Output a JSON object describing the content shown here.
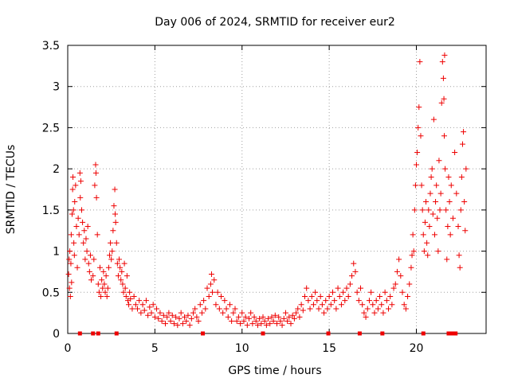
{
  "colors": {
    "marker": "#ee0000",
    "grid": "#a0a0a0",
    "axis": "#000000",
    "background": "#ffffff"
  },
  "chart_data": {
    "type": "scatter",
    "title": "Day 006 of 2024, SRMTID for receiver eur2",
    "xlabel": "GPS time / hours",
    "ylabel": "SRMTID / TECUs",
    "xlim": [
      0,
      24
    ],
    "ylim": [
      0,
      3.5
    ],
    "xticks": [
      0,
      5,
      10,
      15,
      20
    ],
    "xtick_labels": [
      "0",
      "5",
      "10",
      "15",
      "20"
    ],
    "yticks": [
      0,
      0.5,
      1,
      1.5,
      2,
      2.5,
      3,
      3.5
    ],
    "ytick_labels": [
      "0",
      "0.5",
      "1",
      "1.5",
      "2",
      "2.5",
      "3",
      "3.5"
    ],
    "grid": true,
    "marker": "plus",
    "series": [
      {
        "name": "SRMTID",
        "points": [
          [
            0.05,
            0.72
          ],
          [
            0.08,
            0.9
          ],
          [
            0.1,
            0.55
          ],
          [
            0.12,
            1.0
          ],
          [
            0.15,
            0.45
          ],
          [
            0.18,
            0.85
          ],
          [
            0.2,
            1.2
          ],
          [
            0.22,
            0.62
          ],
          [
            0.25,
            1.45
          ],
          [
            0.28,
            1.75
          ],
          [
            0.3,
            1.9
          ],
          [
            0.33,
            1.5
          ],
          [
            0.35,
            1.1
          ],
          [
            0.38,
            0.95
          ],
          [
            0.4,
            1.6
          ],
          [
            0.45,
            1.8
          ],
          [
            0.5,
            1.3
          ],
          [
            0.55,
            0.8
          ],
          [
            0.6,
            1.4
          ],
          [
            0.65,
            1.2
          ],
          [
            0.7,
            1.95
          ],
          [
            0.72,
            1.65
          ],
          [
            0.75,
            1.85
          ],
          [
            0.8,
            1.5
          ],
          [
            0.85,
            1.35
          ],
          [
            0.9,
            1.1
          ],
          [
            0.95,
            1.25
          ],
          [
            1.0,
            0.9
          ],
          [
            1.05,
            1.15
          ],
          [
            1.1,
            1.0
          ],
          [
            1.15,
            1.3
          ],
          [
            1.2,
            0.85
          ],
          [
            1.25,
            0.75
          ],
          [
            1.3,
            0.95
          ],
          [
            1.35,
            0.65
          ],
          [
            1.45,
            0.7
          ],
          [
            1.5,
            0.9
          ],
          [
            1.55,
            1.8
          ],
          [
            1.6,
            2.05
          ],
          [
            1.62,
            1.95
          ],
          [
            1.65,
            1.65
          ],
          [
            1.7,
            1.2
          ],
          [
            1.75,
            0.6
          ],
          [
            1.8,
            0.5
          ],
          [
            1.85,
            0.8
          ],
          [
            1.9,
            0.45
          ],
          [
            1.95,
            0.65
          ],
          [
            2.0,
            0.55
          ],
          [
            2.05,
            0.75
          ],
          [
            2.1,
            0.6
          ],
          [
            2.15,
            0.5
          ],
          [
            2.2,
            0.7
          ],
          [
            2.25,
            0.45
          ],
          [
            2.3,
            0.55
          ],
          [
            2.35,
            0.8
          ],
          [
            2.4,
            0.95
          ],
          [
            2.45,
            1.1
          ],
          [
            2.5,
            0.9
          ],
          [
            2.55,
            1.0
          ],
          [
            2.6,
            1.25
          ],
          [
            2.65,
            1.55
          ],
          [
            2.7,
            1.75
          ],
          [
            2.72,
            1.45
          ],
          [
            2.75,
            1.35
          ],
          [
            2.8,
            1.1
          ],
          [
            2.85,
            0.85
          ],
          [
            2.9,
            0.7
          ],
          [
            2.95,
            0.9
          ],
          [
            3.0,
            0.8
          ],
          [
            3.05,
            0.65
          ],
          [
            3.1,
            0.75
          ],
          [
            3.15,
            0.6
          ],
          [
            3.2,
            0.5
          ],
          [
            3.25,
            0.85
          ],
          [
            3.3,
            0.55
          ],
          [
            3.35,
            0.45
          ],
          [
            3.4,
            0.7
          ],
          [
            3.45,
            0.4
          ],
          [
            3.5,
            0.35
          ],
          [
            3.55,
            0.5
          ],
          [
            3.6,
            0.42
          ],
          [
            3.7,
            0.3
          ],
          [
            3.8,
            0.45
          ],
          [
            3.9,
            0.35
          ],
          [
            4.0,
            0.3
          ],
          [
            4.1,
            0.4
          ],
          [
            4.2,
            0.25
          ],
          [
            4.3,
            0.35
          ],
          [
            4.4,
            0.28
          ],
          [
            4.5,
            0.4
          ],
          [
            4.6,
            0.22
          ],
          [
            4.7,
            0.32
          ],
          [
            4.8,
            0.25
          ],
          [
            4.9,
            0.35
          ],
          [
            5.0,
            0.2
          ],
          [
            5.1,
            0.3
          ],
          [
            5.2,
            0.18
          ],
          [
            5.3,
            0.25
          ],
          [
            5.4,
            0.15
          ],
          [
            5.5,
            0.22
          ],
          [
            5.6,
            0.12
          ],
          [
            5.7,
            0.2
          ],
          [
            5.8,
            0.25
          ],
          [
            5.9,
            0.15
          ],
          [
            6.0,
            0.22
          ],
          [
            6.1,
            0.12
          ],
          [
            6.2,
            0.2
          ],
          [
            6.3,
            0.1
          ],
          [
            6.4,
            0.18
          ],
          [
            6.5,
            0.25
          ],
          [
            6.6,
            0.12
          ],
          [
            6.7,
            0.2
          ],
          [
            6.8,
            0.15
          ],
          [
            6.9,
            0.22
          ],
          [
            7.0,
            0.1
          ],
          [
            7.1,
            0.18
          ],
          [
            7.2,
            0.25
          ],
          [
            7.3,
            0.3
          ],
          [
            7.4,
            0.2
          ],
          [
            7.5,
            0.15
          ],
          [
            7.6,
            0.35
          ],
          [
            7.7,
            0.25
          ],
          [
            7.8,
            0.4
          ],
          [
            7.9,
            0.3
          ],
          [
            8.0,
            0.55
          ],
          [
            8.1,
            0.45
          ],
          [
            8.2,
            0.6
          ],
          [
            8.25,
            0.72
          ],
          [
            8.3,
            0.5
          ],
          [
            8.4,
            0.65
          ],
          [
            8.5,
            0.35
          ],
          [
            8.6,
            0.5
          ],
          [
            8.7,
            0.3
          ],
          [
            8.8,
            0.45
          ],
          [
            8.9,
            0.25
          ],
          [
            9.0,
            0.4
          ],
          [
            9.1,
            0.3
          ],
          [
            9.2,
            0.2
          ],
          [
            9.3,
            0.35
          ],
          [
            9.4,
            0.15
          ],
          [
            9.5,
            0.25
          ],
          [
            9.6,
            0.3
          ],
          [
            9.7,
            0.15
          ],
          [
            9.8,
            0.2
          ],
          [
            9.9,
            0.12
          ],
          [
            10.0,
            0.25
          ],
          [
            10.1,
            0.15
          ],
          [
            10.2,
            0.2
          ],
          [
            10.3,
            0.1
          ],
          [
            10.4,
            0.18
          ],
          [
            10.5,
            0.25
          ],
          [
            10.6,
            0.12
          ],
          [
            10.7,
            0.2
          ],
          [
            10.8,
            0.15
          ],
          [
            10.9,
            0.1
          ],
          [
            11.0,
            0.18
          ],
          [
            11.1,
            0.12
          ],
          [
            11.2,
            0.2
          ],
          [
            11.3,
            0.15
          ],
          [
            11.4,
            0.1
          ],
          [
            11.5,
            0.18
          ],
          [
            11.6,
            0.12
          ],
          [
            11.7,
            0.2
          ],
          [
            11.8,
            0.15
          ],
          [
            11.9,
            0.22
          ],
          [
            12.0,
            0.12
          ],
          [
            12.1,
            0.2
          ],
          [
            12.2,
            0.15
          ],
          [
            12.3,
            0.1
          ],
          [
            12.4,
            0.18
          ],
          [
            12.5,
            0.25
          ],
          [
            12.6,
            0.15
          ],
          [
            12.7,
            0.2
          ],
          [
            12.8,
            0.12
          ],
          [
            12.9,
            0.22
          ],
          [
            13.0,
            0.18
          ],
          [
            13.1,
            0.25
          ],
          [
            13.2,
            0.3
          ],
          [
            13.3,
            0.2
          ],
          [
            13.4,
            0.35
          ],
          [
            13.5,
            0.28
          ],
          [
            13.6,
            0.45
          ],
          [
            13.7,
            0.55
          ],
          [
            13.8,
            0.4
          ],
          [
            13.9,
            0.3
          ],
          [
            14.0,
            0.45
          ],
          [
            14.1,
            0.35
          ],
          [
            14.2,
            0.5
          ],
          [
            14.3,
            0.4
          ],
          [
            14.4,
            0.3
          ],
          [
            14.5,
            0.45
          ],
          [
            14.6,
            0.35
          ],
          [
            14.7,
            0.25
          ],
          [
            14.8,
            0.4
          ],
          [
            14.9,
            0.3
          ],
          [
            15.0,
            0.45
          ],
          [
            15.1,
            0.35
          ],
          [
            15.2,
            0.5
          ],
          [
            15.3,
            0.4
          ],
          [
            15.4,
            0.3
          ],
          [
            15.5,
            0.55
          ],
          [
            15.6,
            0.45
          ],
          [
            15.7,
            0.35
          ],
          [
            15.8,
            0.5
          ],
          [
            15.9,
            0.4
          ],
          [
            16.0,
            0.55
          ],
          [
            16.1,
            0.45
          ],
          [
            16.2,
            0.6
          ],
          [
            16.3,
            0.7
          ],
          [
            16.4,
            0.85
          ],
          [
            16.5,
            0.75
          ],
          [
            16.6,
            0.5
          ],
          [
            16.7,
            0.4
          ],
          [
            16.8,
            0.55
          ],
          [
            16.9,
            0.35
          ],
          [
            17.0,
            0.25
          ],
          [
            17.1,
            0.2
          ],
          [
            17.2,
            0.3
          ],
          [
            17.3,
            0.4
          ],
          [
            17.4,
            0.5
          ],
          [
            17.5,
            0.35
          ],
          [
            17.6,
            0.25
          ],
          [
            17.7,
            0.4
          ],
          [
            17.8,
            0.3
          ],
          [
            17.9,
            0.45
          ],
          [
            18.0,
            0.35
          ],
          [
            18.1,
            0.25
          ],
          [
            18.2,
            0.5
          ],
          [
            18.3,
            0.4
          ],
          [
            18.4,
            0.3
          ],
          [
            18.5,
            0.45
          ],
          [
            18.6,
            0.35
          ],
          [
            18.7,
            0.55
          ],
          [
            18.8,
            0.6
          ],
          [
            18.9,
            0.75
          ],
          [
            19.0,
            0.9
          ],
          [
            19.1,
            0.7
          ],
          [
            19.2,
            0.5
          ],
          [
            19.3,
            0.35
          ],
          [
            19.4,
            0.3
          ],
          [
            19.5,
            0.45
          ],
          [
            19.6,
            0.6
          ],
          [
            19.7,
            0.8
          ],
          [
            19.75,
            0.95
          ],
          [
            19.8,
            1.2
          ],
          [
            19.85,
            1.0
          ],
          [
            19.9,
            1.5
          ],
          [
            19.95,
            1.8
          ],
          [
            20.0,
            2.05
          ],
          [
            20.05,
            2.2
          ],
          [
            20.1,
            2.5
          ],
          [
            20.15,
            2.75
          ],
          [
            20.2,
            3.3
          ],
          [
            20.25,
            2.4
          ],
          [
            20.3,
            1.8
          ],
          [
            20.35,
            1.5
          ],
          [
            20.4,
            1.2
          ],
          [
            20.45,
            1.0
          ],
          [
            20.5,
            1.35
          ],
          [
            20.55,
            1.6
          ],
          [
            20.6,
            1.1
          ],
          [
            20.65,
            0.95
          ],
          [
            20.7,
            1.5
          ],
          [
            20.75,
            1.3
          ],
          [
            20.8,
            1.7
          ],
          [
            20.85,
            1.9
          ],
          [
            20.9,
            2.0
          ],
          [
            20.95,
            1.45
          ],
          [
            21.0,
            2.6
          ],
          [
            21.05,
            1.2
          ],
          [
            21.1,
            1.6
          ],
          [
            21.15,
            1.8
          ],
          [
            21.2,
            1.4
          ],
          [
            21.25,
            1.0
          ],
          [
            21.3,
            2.1
          ],
          [
            21.35,
            1.5
          ],
          [
            21.4,
            1.7
          ],
          [
            21.45,
            2.8
          ],
          [
            21.5,
            3.3
          ],
          [
            21.55,
            3.1
          ],
          [
            21.6,
            2.4
          ],
          [
            21.65,
            2.0
          ],
          [
            21.7,
            1.5
          ],
          [
            21.75,
            0.9
          ],
          [
            21.8,
            1.3
          ],
          [
            21.85,
            1.9
          ],
          [
            21.9,
            1.6
          ],
          [
            21.95,
            1.2
          ],
          [
            22.0,
            1.8
          ],
          [
            22.1,
            1.4
          ],
          [
            22.2,
            2.2
          ],
          [
            22.3,
            1.7
          ],
          [
            22.4,
            1.3
          ],
          [
            22.45,
            0.95
          ],
          [
            22.5,
            0.8
          ],
          [
            22.55,
            1.5
          ],
          [
            22.6,
            1.9
          ],
          [
            22.65,
            2.3
          ],
          [
            22.7,
            2.45
          ],
          [
            22.75,
            1.6
          ],
          [
            22.8,
            1.25
          ],
          [
            22.85,
            2.0
          ],
          [
            21.62,
            3.38
          ],
          [
            21.58,
            2.85
          ]
        ],
        "baseline_points_x": [
          0.7,
          1.45,
          1.75,
          2.8,
          7.75,
          11.2,
          14.95,
          16.75,
          18.05,
          20.4,
          21.85,
          22.05,
          22.25
        ]
      }
    ]
  }
}
